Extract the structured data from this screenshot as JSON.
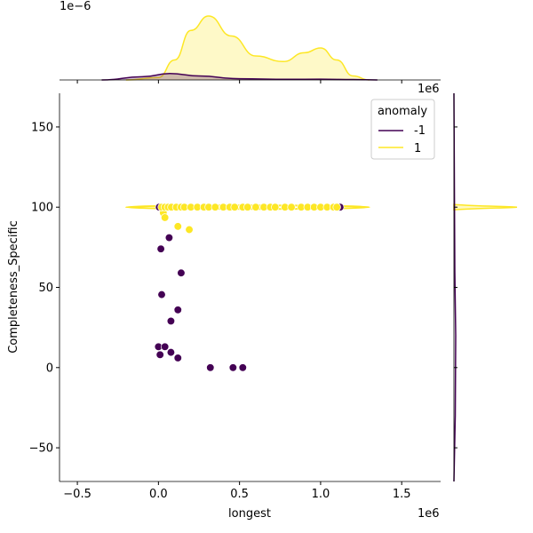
{
  "chart_data": {
    "type": "scatter",
    "xlabel": "longest",
    "ylabel": "Completeness_Specific",
    "x_offset_label": "1e6",
    "top_marginal_offset_label": "1e−6",
    "right_marginal_offset_label": "1e6",
    "xlim": [
      -0.61,
      1.74
    ],
    "ylim": [
      -71,
      171
    ],
    "xticks": [
      -0.5,
      0.0,
      0.5,
      1.0,
      1.5
    ],
    "xtick_labels": [
      "−0.5",
      "0.0",
      "0.5",
      "1.0",
      "1.5"
    ],
    "yticks": [
      -50,
      0,
      50,
      100,
      150
    ],
    "ytick_labels": [
      "−50",
      "0",
      "50",
      "100",
      "150"
    ],
    "legend": {
      "title": "anomaly",
      "placement": "top-right",
      "entries": [
        "-1",
        "1"
      ]
    },
    "colors": {
      "-1": "#440154",
      "1": "#fde725"
    },
    "series": [
      {
        "name": "-1",
        "points": [
          [
            0.066,
            81
          ],
          [
            0.015,
            74
          ],
          [
            0.14,
            59
          ],
          [
            0.02,
            45.5
          ],
          [
            0.12,
            36
          ],
          [
            0.077,
            29
          ],
          [
            0.0,
            13
          ],
          [
            0.04,
            13
          ],
          [
            0.01,
            8
          ],
          [
            0.077,
            9.5
          ],
          [
            0.12,
            6
          ],
          [
            0.32,
            0
          ],
          [
            0.46,
            0
          ],
          [
            0.52,
            0
          ],
          [
            1.12,
            100
          ],
          [
            0.005,
            100
          ]
        ]
      },
      {
        "name": "1",
        "points": [
          [
            0.03,
            96.5
          ],
          [
            0.04,
            93.5
          ],
          [
            0.12,
            88
          ],
          [
            0.19,
            86
          ],
          [
            0.02,
            100
          ],
          [
            0.04,
            100
          ],
          [
            0.06,
            100
          ],
          [
            0.08,
            100
          ],
          [
            0.11,
            100
          ],
          [
            0.14,
            100
          ],
          [
            0.16,
            100
          ],
          [
            0.2,
            100
          ],
          [
            0.24,
            100
          ],
          [
            0.28,
            100
          ],
          [
            0.31,
            100
          ],
          [
            0.35,
            100
          ],
          [
            0.4,
            100
          ],
          [
            0.44,
            100
          ],
          [
            0.47,
            100
          ],
          [
            0.52,
            100
          ],
          [
            0.55,
            100
          ],
          [
            0.6,
            100
          ],
          [
            0.65,
            100
          ],
          [
            0.69,
            100
          ],
          [
            0.72,
            100
          ],
          [
            0.78,
            100
          ],
          [
            0.82,
            100
          ],
          [
            0.88,
            100
          ],
          [
            0.92,
            100
          ],
          [
            0.96,
            100
          ],
          [
            1.0,
            100
          ],
          [
            1.04,
            100
          ],
          [
            1.08,
            100
          ],
          [
            1.1,
            100
          ]
        ]
      }
    ],
    "top_kde": {
      "ylim": [
        0,
        1.0
      ],
      "series": [
        {
          "name": "1",
          "x": [
            -0.2,
            0.0,
            0.1,
            0.2,
            0.31,
            0.45,
            0.6,
            0.77,
            0.9,
            1.0,
            1.1,
            1.2,
            1.3
          ],
          "y": [
            0,
            0.03,
            0.25,
            0.62,
            0.8,
            0.55,
            0.3,
            0.23,
            0.34,
            0.4,
            0.25,
            0.05,
            0
          ]
        },
        {
          "name": "-1",
          "x": [
            -0.35,
            -0.1,
            0.07,
            0.25,
            0.5,
            0.8,
            1.0,
            1.2,
            1.35
          ],
          "y": [
            0,
            0.04,
            0.08,
            0.05,
            0.015,
            0.008,
            0.01,
            0.005,
            0
          ]
        }
      ]
    }
  }
}
